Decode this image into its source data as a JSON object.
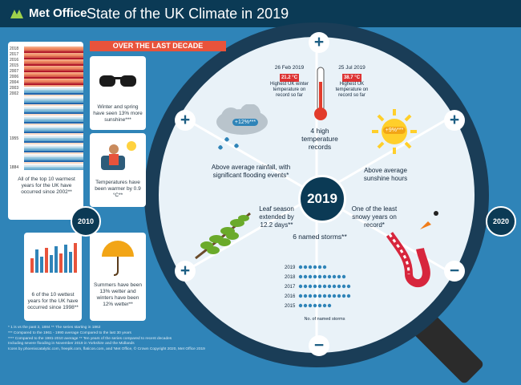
{
  "header": {
    "brand": "Met Office",
    "title": "State of the UK Climate in 2019"
  },
  "banner": "OVER THE LAST DECADE",
  "stripes_panel": {
    "years": [
      "2018",
      "2017",
      "2016",
      "2015",
      "2007",
      "2006",
      "2004",
      "2003",
      "2002"
    ],
    "year_mid": "1955",
    "year_bottom": "1884",
    "caption": "All of the top 10 warmest years for the UK have occurred since 2002**"
  },
  "sunglasses_panel": {
    "caption": "Winter and spring have seen 13% more sunshine***"
  },
  "temperature_panel": {
    "caption": "Temperatures have been warmer by 0.9 °C**"
  },
  "candle_panel": {
    "caption": "6 of the 10 wettest years for the UK have occurred since 1998**"
  },
  "umbrella_panel": {
    "caption": "Summers have been 13% wetter and winters have been 12% wetter**"
  },
  "timeline": {
    "start": "2010",
    "end": "2020"
  },
  "center_year": "2019",
  "segments": {
    "temperature": {
      "date_left": "26 Feb 2019",
      "value_left": "21.2 °C",
      "label_left": "Highest UK winter temperature on record so far",
      "date_right": "25 Jul 2019",
      "value_right": "38.7 °C",
      "label_right": "Highest UK temperature on record so far",
      "headline": "4 high temperature records"
    },
    "rainfall": {
      "badge": "+12%***",
      "headline": "Above average rainfall, with significant flooding events*"
    },
    "sunshine": {
      "badge": "+9%***",
      "headline": "Above average sunshine hours"
    },
    "leaf": {
      "headline": "Leaf season extended by 12.2 days**"
    },
    "storms": {
      "headline": "6 named storms**",
      "years": [
        "2019",
        "2018",
        "2017",
        "2016",
        "2015"
      ],
      "counts": [
        6,
        10,
        11,
        11,
        7
      ],
      "axis_label": "No. of named storms"
    },
    "snow": {
      "headline": "One of the least snowy years on record*"
    }
  },
  "footnotes": [
    "* 1 is vs the past 3, 1884    ** The series starting in 1862",
    "*** Compared to the 1961 - 1990 average    Compared to the last 30 years",
    "**** Compared to the 1981-2010 average  ** Ten years of the series compared to recent decades",
    "Including severe flooding in November 2019 in Yorkshire and the Midlands",
    "Icons by phoenixcatalytic.com, freepik.com, flaticon.com, and 'Met Office, © Crown Copyright 2020, Met Office 2019"
  ],
  "colors": {
    "accent": "#e8533b",
    "navy": "#0b3a55",
    "sea": "#2f84b8"
  }
}
